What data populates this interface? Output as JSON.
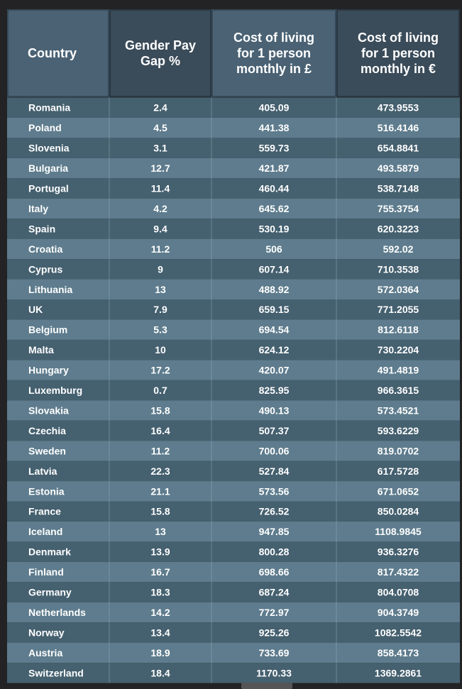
{
  "colors": {
    "background": "#232325",
    "header_light": "#4a6274",
    "header_dark": "#3a4b59",
    "row_dark": "#45606f",
    "row_light": "#5e7c8d",
    "divider": "#8aa7b7",
    "text": "#ffffff"
  },
  "chart_data": {
    "type": "table",
    "columns": [
      "Country",
      "Gender Pay\nGap %",
      "Cost of living\nfor 1 person\nmonthly in £",
      "Cost of living\nfor 1 person\nmonthly in €"
    ],
    "rows": [
      [
        "Romania",
        "2.4",
        "405.09",
        "473.9553"
      ],
      [
        "Poland",
        "4.5",
        "441.38",
        "516.4146"
      ],
      [
        "Slovenia",
        "3.1",
        "559.73",
        "654.8841"
      ],
      [
        "Bulgaria",
        "12.7",
        "421.87",
        "493.5879"
      ],
      [
        "Portugal",
        "11.4",
        "460.44",
        "538.7148"
      ],
      [
        "Italy",
        "4.2",
        "645.62",
        "755.3754"
      ],
      [
        "Spain",
        "9.4",
        "530.19",
        "620.3223"
      ],
      [
        "Croatia",
        "11.2",
        "506",
        "592.02"
      ],
      [
        "Cyprus",
        "9",
        "607.14",
        "710.3538"
      ],
      [
        "Lithuania",
        "13",
        "488.92",
        "572.0364"
      ],
      [
        "UK",
        "7.9",
        "659.15",
        "771.2055"
      ],
      [
        "Belgium",
        "5.3",
        "694.54",
        "812.6118"
      ],
      [
        "Malta",
        "10",
        "624.12",
        "730.2204"
      ],
      [
        "Hungary",
        "17.2",
        "420.07",
        "491.4819"
      ],
      [
        "Luxemburg",
        "0.7",
        "825.95",
        "966.3615"
      ],
      [
        "Slovakia",
        "15.8",
        "490.13",
        "573.4521"
      ],
      [
        "Czechia",
        "16.4",
        "507.37",
        "593.6229"
      ],
      [
        "Sweden",
        "11.2",
        "700.06",
        "819.0702"
      ],
      [
        "Latvia",
        "22.3",
        "527.84",
        "617.5728"
      ],
      [
        "Estonia",
        "21.1",
        "573.56",
        "671.0652"
      ],
      [
        "France",
        "15.8",
        "726.52",
        "850.0284"
      ],
      [
        "Iceland",
        "13",
        "947.85",
        "1108.9845"
      ],
      [
        "Denmark",
        "13.9",
        "800.28",
        "936.3276"
      ],
      [
        "Finland",
        "16.7",
        "698.66",
        "817.4322"
      ],
      [
        "Germany",
        "18.3",
        "687.24",
        "804.0708"
      ],
      [
        "Netherlands",
        "14.2",
        "772.97",
        "904.3749"
      ],
      [
        "Norway",
        "13.4",
        "925.26",
        "1082.5542"
      ],
      [
        "Austria",
        "18.9",
        "733.69",
        "858.4173"
      ],
      [
        "Switzerland",
        "18.4",
        "1170.33",
        "1369.2861"
      ]
    ]
  }
}
